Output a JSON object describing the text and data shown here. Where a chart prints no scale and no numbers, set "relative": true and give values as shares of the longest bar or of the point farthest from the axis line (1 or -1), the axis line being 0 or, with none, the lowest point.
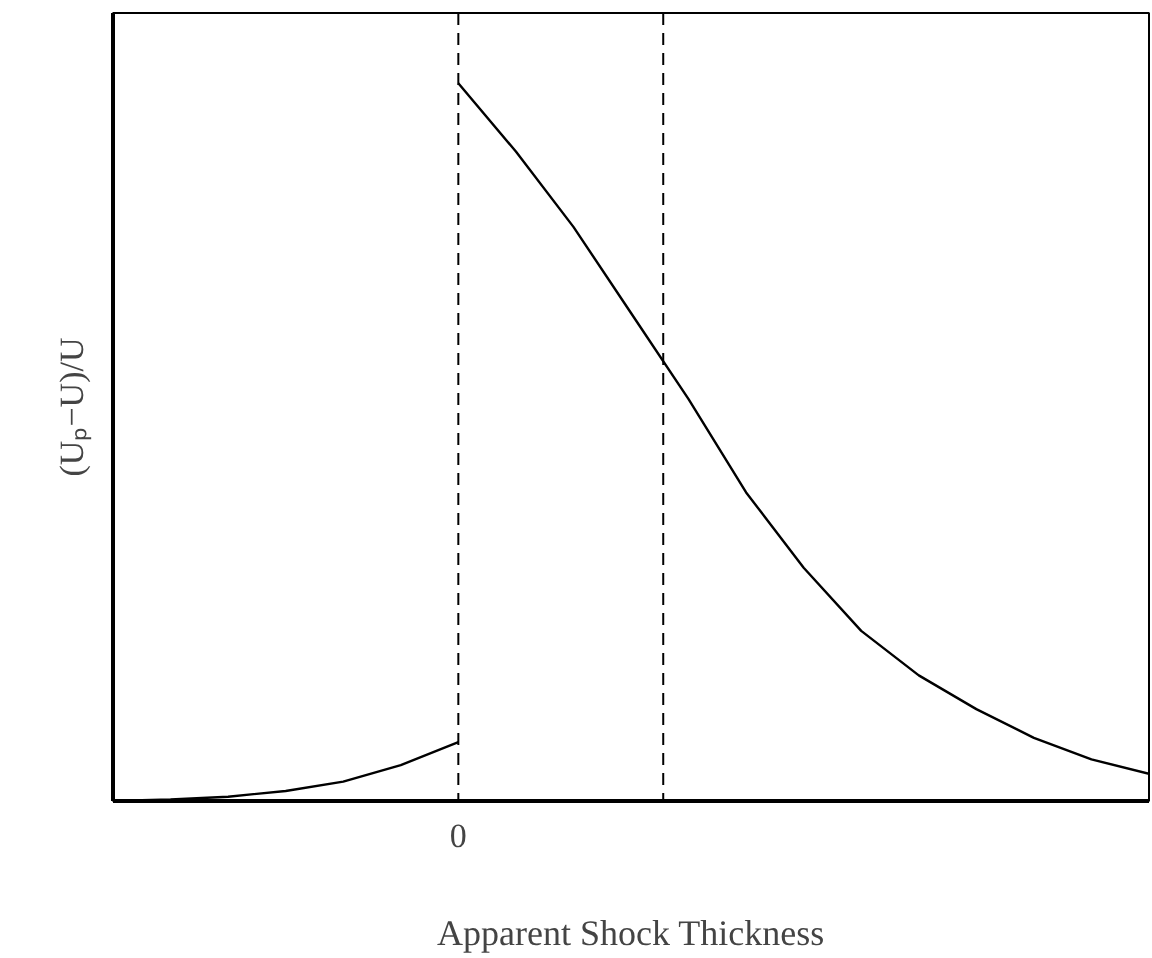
{
  "chart_data": {
    "type": "line",
    "relative": true,
    "xlabel": "Apparent Shock Thickness",
    "ylabel": "(Uₚ−U)/U",
    "annotations": [
      "0"
    ],
    "categories": [
      null,
      null,
      null,
      null,
      null,
      null,
      null,
      null,
      null,
      null,
      null,
      null,
      null,
      null,
      null,
      null,
      null,
      null,
      null
    ],
    "series": [
      {
        "color": "#000000",
        "values": [
          0,
          0.002,
          0.006,
          0.014,
          0.027,
          0.05,
          0.082,
          null,
          null,
          null,
          null,
          null,
          null,
          null,
          null,
          null,
          null,
          null,
          null
        ]
      },
      {
        "color": "#000000",
        "values": [
          null,
          null,
          null,
          null,
          null,
          null,
          1.0,
          0.905,
          0.8,
          0.68,
          0.56,
          0.43,
          0.325,
          0.237,
          0.175,
          0.128,
          0.088,
          0.058,
          0.038
        ]
      }
    ],
    "grid": false,
    "line_style": "solid",
    "marker": "none"
  }
}
